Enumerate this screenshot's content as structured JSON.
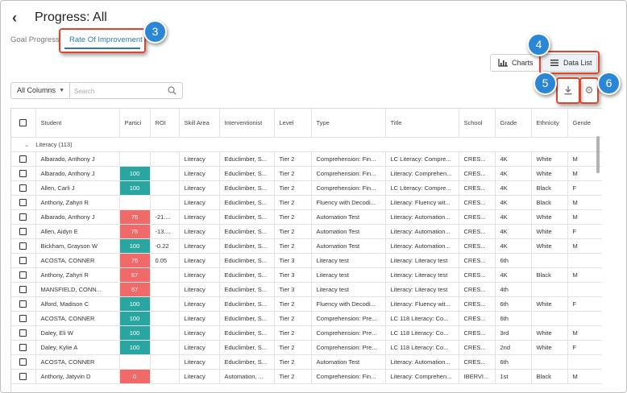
{
  "header": {
    "back_icon": "chevron-left-icon",
    "title": "Progress: All"
  },
  "tabs": [
    {
      "label": "Goal Progress",
      "active": false
    },
    {
      "label": "Rate Of Improvement",
      "active": true
    }
  ],
  "view_toggle": {
    "charts_label": "Charts",
    "data_list_label": "Data List",
    "active": "Data List"
  },
  "toolbar": {
    "download_icon": "download-icon",
    "settings_icon": "gear-icon"
  },
  "filter": {
    "column_select": "All Columns",
    "search_placeholder": "Search",
    "search_value": ""
  },
  "callouts": [
    "3",
    "4",
    "5",
    "6"
  ],
  "colors": {
    "accent": "#2b7bb5",
    "good": "#2aa6a2",
    "bad": "#f06a6a",
    "callout": "#2b87d6",
    "highlight": "#e0452b"
  },
  "table": {
    "columns": [
      "Student",
      "Partici",
      "ROI",
      "Skill Area",
      "Interventionist",
      "Level",
      "Type",
      "Title",
      "School",
      "Grade",
      "Ethnicity",
      "Gende"
    ],
    "group": "Literacy (113)",
    "rows": [
      {
        "student": "Albarado, Anthony J",
        "partici": "",
        "status": "",
        "roi": "",
        "skill": "Literacy",
        "interventionist": "Educlimber, S...",
        "level": "Tier 2",
        "type": "Comprehension: Fin...",
        "title": "LC Literacy: Compre...",
        "school": "CRES...",
        "grade": "4K",
        "ethnicity": "White",
        "gender": "M"
      },
      {
        "student": "Albarado, Anthony J",
        "partici": "100",
        "status": "good",
        "roi": "",
        "skill": "Literacy",
        "interventionist": "Educlimber, S...",
        "level": "Tier 2",
        "type": "Comprehension: Fin...",
        "title": "Literacy: Comprehen...",
        "school": "CRES...",
        "grade": "4K",
        "ethnicity": "White",
        "gender": "M"
      },
      {
        "student": "Allen, Carli J",
        "partici": "100",
        "status": "good",
        "roi": "",
        "skill": "Literacy",
        "interventionist": "Educlimber, S...",
        "level": "Tier 2",
        "type": "Comprehension: Fin...",
        "title": "LC Literacy: Compre...",
        "school": "CRES...",
        "grade": "4K",
        "ethnicity": "Black",
        "gender": "F"
      },
      {
        "student": "Anthony, Zahyri R",
        "partici": "",
        "status": "",
        "roi": "",
        "skill": "Literacy",
        "interventionist": "Educlimber, S...",
        "level": "Tier 2",
        "type": "Fluency with Decodi...",
        "title": "Literacy: Fluency wit...",
        "school": "CRES...",
        "grade": "4K",
        "ethnicity": "Black",
        "gender": "M"
      },
      {
        "student": "Albarado, Anthony J",
        "partici": "75",
        "status": "bad",
        "roi": "-21....",
        "skill": "Literacy",
        "interventionist": "Educlimber, S...",
        "level": "Tier 2",
        "type": "Automation Test",
        "title": "Literacy: Automation...",
        "school": "CRES...",
        "grade": "4K",
        "ethnicity": "White",
        "gender": "M"
      },
      {
        "student": "Allen, Aidyn E",
        "partici": "75",
        "status": "bad",
        "roi": "-13....",
        "skill": "Literacy",
        "interventionist": "Educlimber, S...",
        "level": "Tier 2",
        "type": "Automation Test",
        "title": "Literacy: Automation...",
        "school": "CRES...",
        "grade": "4K",
        "ethnicity": "White",
        "gender": "F"
      },
      {
        "student": "Bickham, Grayson W",
        "partici": "100",
        "status": "good",
        "roi": "-0.22",
        "skill": "Literacy",
        "interventionist": "Educlimber, S...",
        "level": "Tier 2",
        "type": "Automation Test",
        "title": "Literacy: Automation...",
        "school": "CRES...",
        "grade": "4K",
        "ethnicity": "White",
        "gender": "M"
      },
      {
        "student": "ACOSTA, CONNER",
        "partici": "75",
        "status": "bad",
        "roi": "0.05",
        "skill": "Literacy",
        "interventionist": "Educlimber, S...",
        "level": "Tier 3",
        "type": "Literacy test",
        "title": "Literacy: Literacy test",
        "school": "CRES...",
        "grade": "6th",
        "ethnicity": "",
        "gender": ""
      },
      {
        "student": "Anthony, Zahyri R",
        "partici": "67",
        "status": "bad",
        "roi": "",
        "skill": "Literacy",
        "interventionist": "Educlimber, S...",
        "level": "Tier 3",
        "type": "Literacy test",
        "title": "Literacy: Literacy test",
        "school": "CRES...",
        "grade": "4K",
        "ethnicity": "Black",
        "gender": "M"
      },
      {
        "student": "MANSFIELD, CONN...",
        "partici": "67",
        "status": "bad",
        "roi": "",
        "skill": "Literacy",
        "interventionist": "Educlimber, S...",
        "level": "Tier 3",
        "type": "Literacy test",
        "title": "Literacy: Literacy test",
        "school": "CRES...",
        "grade": "4th",
        "ethnicity": "",
        "gender": ""
      },
      {
        "student": "Alford, Madison C",
        "partici": "100",
        "status": "good",
        "roi": "",
        "skill": "Literacy",
        "interventionist": "Educlimber, S...",
        "level": "Tier 2",
        "type": "Fluency with Decodi...",
        "title": "Literacy: Fluency wit...",
        "school": "CRES...",
        "grade": "6th",
        "ethnicity": "White",
        "gender": "F"
      },
      {
        "student": "ACOSTA, CONNER",
        "partici": "100",
        "status": "good",
        "roi": "",
        "skill": "Literacy",
        "interventionist": "Educlimber, S...",
        "level": "Tier 2",
        "type": "Comprehension: Pre...",
        "title": "LC 118 Literacy: Co...",
        "school": "CRES...",
        "grade": "6th",
        "ethnicity": "",
        "gender": ""
      },
      {
        "student": "Daley, Eli W",
        "partici": "100",
        "status": "good",
        "roi": "",
        "skill": "Literacy",
        "interventionist": "Educlimber, S...",
        "level": "Tier 2",
        "type": "Comprehension: Pre...",
        "title": "LC 118 Literacy: Co...",
        "school": "CRES...",
        "grade": "3rd",
        "ethnicity": "White",
        "gender": "M"
      },
      {
        "student": "Daley, Kylie A",
        "partici": "100",
        "status": "good",
        "roi": "",
        "skill": "Literacy",
        "interventionist": "Educlimber, S...",
        "level": "Tier 2",
        "type": "Comprehension: Pre...",
        "title": "LC 118 Literacy: Co...",
        "school": "CRES...",
        "grade": "2nd",
        "ethnicity": "White",
        "gender": "F"
      },
      {
        "student": "ACOSTA, CONNER",
        "partici": "",
        "status": "",
        "roi": "",
        "skill": "Literacy",
        "interventionist": "Educlimber, S...",
        "level": "Tier 2",
        "type": "Automation Test",
        "title": "Literacy: Automation...",
        "school": "CRES...",
        "grade": "6th",
        "ethnicity": "",
        "gender": ""
      },
      {
        "student": "Anthony, Jatyvin D",
        "partici": "0",
        "status": "bad",
        "roi": "",
        "skill": "Literacy",
        "interventionist": "Automation, ...",
        "level": "Tier 2",
        "type": "Comprehension: Fin...",
        "title": "Literacy: Comprehen...",
        "school": "IBERVI...",
        "grade": "1st",
        "ethnicity": "Black",
        "gender": "M"
      }
    ]
  }
}
